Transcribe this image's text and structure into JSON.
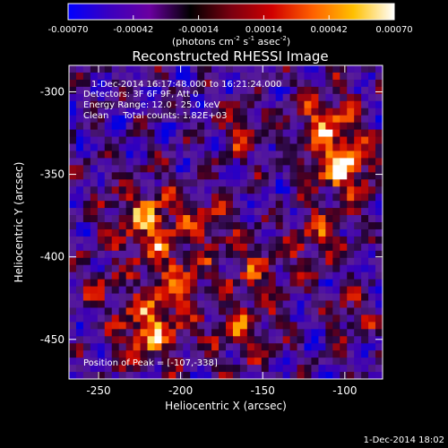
{
  "chart_data": {
    "type": "heatmap",
    "title": "Reconstructed RHESSI Image",
    "xlabel": "Heliocentric X (arcsec)",
    "ylabel": "Heliocentric Y (arcsec)",
    "xlim": [
      -268,
      -77
    ],
    "ylim": [
      -474,
      -284
    ],
    "x_ticks": [
      -250,
      -200,
      -150,
      -100
    ],
    "y_ticks": [
      -300,
      -350,
      -400,
      -450
    ],
    "colorbar": {
      "range": [
        -0.0007,
        0.0007
      ],
      "ticks": [
        "-0.00070",
        "-0.00042",
        "-0.00014",
        "0.00014",
        "0.00042",
        "0.00070"
      ],
      "unit_text": "(photons cm",
      "unit_sup1": "-2",
      "unit_mid1": " s",
      "unit_sup2": "-1",
      "unit_mid2": " asec",
      "unit_sup3": "-2",
      "unit_end": ")",
      "colors": [
        "#0000ff",
        "#3a00c0",
        "#6a00a0",
        "#000000",
        "#7a0010",
        "#d00000",
        "#ff6000",
        "#ffc000",
        "#ffffff"
      ]
    },
    "annotations": [
      "1-Dec-2014 16:17:48.000 to 16:21:24.000",
      "Detectors: 3F 6F 9F, Att 0",
      "Energy Range: 12.0 - 25.0 keV",
      "Clean     Total counts: 1.82E+03"
    ],
    "peak_label": "Position of Peak = [-107,-338]",
    "peak_position": [
      -107,
      -338
    ],
    "timestamp": "1-Dec-2014 18:02"
  }
}
